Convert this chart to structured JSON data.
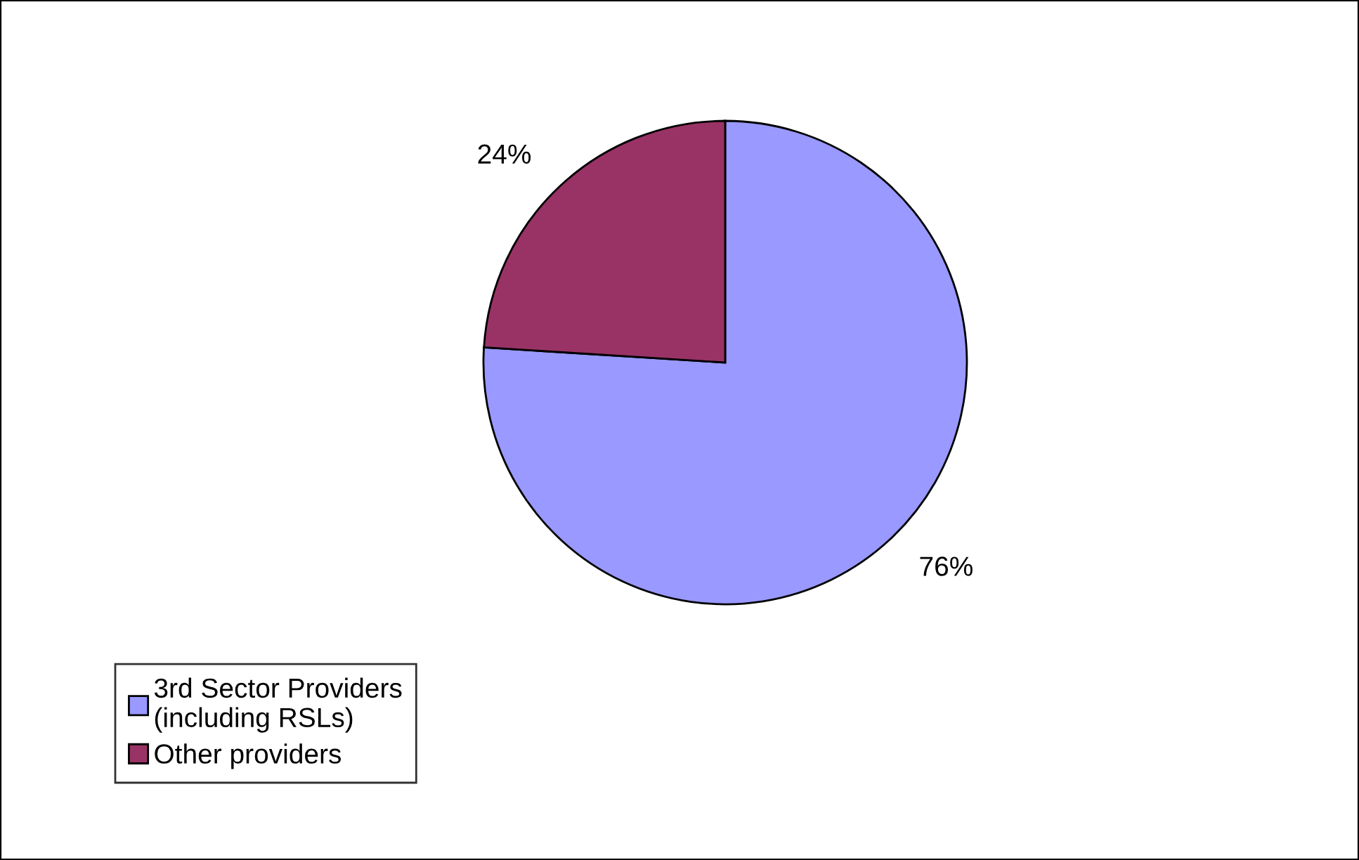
{
  "chart_data": {
    "type": "pie",
    "categories": [
      "3rd Sector Providers\n(including RSLs)",
      "Other providers"
    ],
    "values": [
      76,
      24
    ],
    "colors": [
      "#9999ff",
      "#993366"
    ],
    "value_labels": [
      "76%",
      "24%"
    ],
    "legend": "bottom left"
  }
}
